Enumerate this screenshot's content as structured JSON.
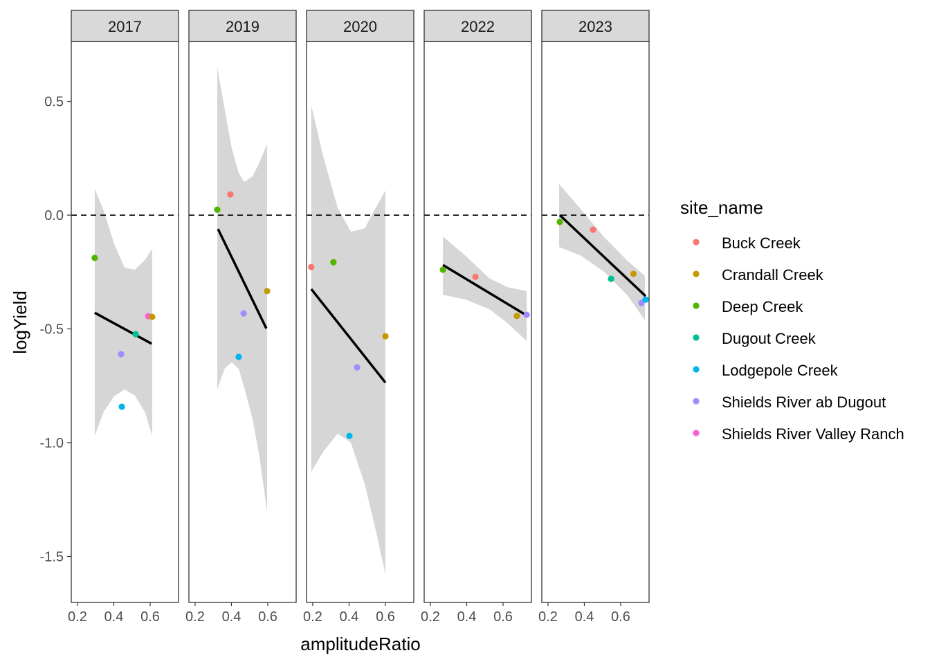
{
  "chart_data": {
    "type": "scatter",
    "xlabel": "amplitudeRatio",
    "ylabel": "logYield",
    "xlim": [
      0.166,
      0.756
    ],
    "ylim": [
      -1.702,
      0.763
    ],
    "x_ticks": [
      0.2,
      0.4,
      0.6
    ],
    "x_tick_labels": [
      "0.2",
      "0.4",
      "0.6"
    ],
    "y_ticks": [
      0.5,
      0.0,
      -0.5,
      -1.0,
      -1.5
    ],
    "y_tick_labels": [
      "0.5",
      "0.0",
      "-0.5",
      "-1.0",
      "-1.5"
    ],
    "reference_line": {
      "y": 0,
      "style": "dashed"
    },
    "grid": false,
    "legend": {
      "title": "site_name",
      "placement": "right",
      "entries": [
        {
          "name": "Buck Creek",
          "color": "#F8766D"
        },
        {
          "name": "Crandall Creek",
          "color": "#C49A00"
        },
        {
          "name": "Deep Creek",
          "color": "#53B400"
        },
        {
          "name": "Dugout Creek",
          "color": "#00C094"
        },
        {
          "name": "Lodgepole Creek",
          "color": "#00B6EB"
        },
        {
          "name": "Shields River ab Dugout",
          "color": "#A58AFF"
        },
        {
          "name": "Shields River Valley Ranch",
          "color": "#FB61D7"
        }
      ]
    },
    "panels": [
      {
        "label": "2017",
        "points": [
          {
            "site": "Deep Creek",
            "x": 0.295,
            "y": -0.188
          },
          {
            "site": "Shields River ab Dugout",
            "x": 0.44,
            "y": -0.611
          },
          {
            "site": "Lodgepole Creek",
            "x": 0.444,
            "y": -0.842
          },
          {
            "site": "Dugout Creek",
            "x": 0.52,
            "y": -0.523
          },
          {
            "site": "Shields River Valley Ranch",
            "x": 0.589,
            "y": -0.444
          },
          {
            "site": "Crandall Creek",
            "x": 0.611,
            "y": -0.447
          }
        ],
        "fit": {
          "x": [
            0.295,
            0.608
          ],
          "y": [
            -0.429,
            -0.565
          ]
        },
        "ribbon": {
          "x": [
            0.295,
            0.345,
            0.402,
            0.459,
            0.516,
            0.573,
            0.611
          ],
          "ymax": [
            0.116,
            0.018,
            -0.125,
            -0.231,
            -0.24,
            -0.195,
            -0.149
          ],
          "ymin": [
            -0.97,
            -0.863,
            -0.796,
            -0.766,
            -0.793,
            -0.869,
            -0.97
          ]
        }
      },
      {
        "label": "2019",
        "points": [
          {
            "site": "Buck Creek",
            "x": 0.394,
            "y": 0.091
          },
          {
            "site": "Deep Creek",
            "x": 0.322,
            "y": 0.024
          },
          {
            "site": "Crandall Creek",
            "x": 0.596,
            "y": -0.334
          },
          {
            "site": "Shields River ab Dugout",
            "x": 0.467,
            "y": -0.432
          },
          {
            "site": "Lodgepole Creek",
            "x": 0.44,
            "y": -0.623
          }
        ],
        "fit": {
          "x": [
            0.326,
            0.592
          ],
          "y": [
            -0.061,
            -0.498
          ]
        },
        "ribbon": {
          "x": [
            0.322,
            0.364,
            0.402,
            0.44,
            0.47,
            0.516,
            0.554,
            0.596
          ],
          "ymax": [
            0.65,
            0.459,
            0.292,
            0.185,
            0.146,
            0.17,
            0.231,
            0.313
          ],
          "ymin": [
            -0.766,
            -0.672,
            -0.647,
            -0.676,
            -0.757,
            -0.894,
            -1.061,
            -1.304
          ]
        }
      },
      {
        "label": "2020",
        "points": [
          {
            "site": "Buck Creek",
            "x": 0.192,
            "y": -0.228
          },
          {
            "site": "Deep Creek",
            "x": 0.314,
            "y": -0.207
          },
          {
            "site": "Crandall Creek",
            "x": 0.6,
            "y": -0.532
          },
          {
            "site": "Shields River ab Dugout",
            "x": 0.444,
            "y": -0.669
          },
          {
            "site": "Lodgepole Creek",
            "x": 0.402,
            "y": -0.97
          }
        ],
        "fit": {
          "x": [
            0.192,
            0.6
          ],
          "y": [
            -0.325,
            -0.736
          ]
        },
        "ribbon": {
          "x": [
            0.192,
            0.257,
            0.337,
            0.41,
            0.486,
            0.547,
            0.6
          ],
          "ymax": [
            0.483,
            0.261,
            0.033,
            -0.073,
            -0.058,
            0.033,
            0.109
          ],
          "ymin": [
            -1.128,
            -1.04,
            -0.96,
            -1.0,
            -1.182,
            -1.386,
            -1.578
          ]
        }
      },
      {
        "label": "2022",
        "points": [
          {
            "site": "Deep Creek",
            "x": 0.269,
            "y": -0.24
          },
          {
            "site": "Buck Creek",
            "x": 0.448,
            "y": -0.271
          },
          {
            "site": "Crandall Creek",
            "x": 0.676,
            "y": -0.443
          },
          {
            "site": "Shields River ab Dugout",
            "x": 0.73,
            "y": -0.438
          }
        ],
        "fit": {
          "x": [
            0.269,
            0.73
          ],
          "y": [
            -0.219,
            -0.441
          ]
        },
        "ribbon": {
          "x": [
            0.269,
            0.394,
            0.524,
            0.623,
            0.73
          ],
          "ymax": [
            -0.094,
            -0.179,
            -0.277,
            -0.316,
            -0.334
          ],
          "ymin": [
            -0.35,
            -0.371,
            -0.413,
            -0.474,
            -0.553
          ]
        }
      },
      {
        "label": "2023",
        "points": [
          {
            "site": "Deep Creek",
            "x": 0.265,
            "y": -0.03
          },
          {
            "site": "Buck Creek",
            "x": 0.448,
            "y": -0.064
          },
          {
            "site": "Dugout Creek",
            "x": 0.547,
            "y": -0.28
          },
          {
            "site": "Crandall Creek",
            "x": 0.67,
            "y": -0.258
          },
          {
            "site": "Shields River ab Dugout",
            "x": 0.714,
            "y": -0.386
          },
          {
            "site": "Lodgepole Creek",
            "x": 0.737,
            "y": -0.371
          }
        ],
        "fit": {
          "x": [
            0.265,
            0.737
          ],
          "y": [
            0.0,
            -0.356
          ]
        },
        "ribbon": {
          "x": [
            0.261,
            0.383,
            0.509,
            0.638,
            0.733
          ],
          "ymax": [
            0.137,
            0.024,
            -0.097,
            -0.201,
            -0.267
          ],
          "ymin": [
            -0.14,
            -0.179,
            -0.249,
            -0.353,
            -0.462
          ]
        }
      }
    ]
  }
}
